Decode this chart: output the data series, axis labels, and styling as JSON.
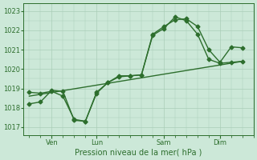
{
  "title": "",
  "xlabel": "Pression niveau de la mer( hPa )",
  "ylabel": "",
  "bg_color": "#cce8d8",
  "line_color": "#2d6e2d",
  "grid_color": "#aacdb8",
  "ylim": [
    1016.6,
    1023.4
  ],
  "yticks": [
    1017,
    1018,
    1019,
    1020,
    1021,
    1022,
    1023
  ],
  "xtick_labels": [
    "Ven",
    "Lun",
    "Sam",
    "Dim"
  ],
  "xtick_positions": [
    2,
    6,
    12,
    17
  ],
  "xlim": [
    -0.5,
    20
  ],
  "line1_x": [
    0,
    1,
    2,
    3,
    4,
    5,
    6,
    7,
    8,
    9,
    10,
    11,
    12,
    13,
    14,
    15,
    16,
    17,
    18,
    19
  ],
  "line1_y": [
    1018.8,
    1018.75,
    1018.85,
    1018.6,
    1017.4,
    1017.3,
    1018.75,
    1019.3,
    1019.65,
    1019.65,
    1019.7,
    1021.8,
    1022.2,
    1022.55,
    1022.6,
    1022.2,
    1021.0,
    1020.35,
    1021.15,
    1021.1
  ],
  "line2_x": [
    0,
    1,
    2,
    3,
    4,
    5,
    6,
    7,
    8,
    9,
    10,
    11,
    12,
    13,
    14,
    15,
    16,
    17,
    18,
    19
  ],
  "line2_y": [
    1018.2,
    1018.3,
    1018.9,
    1018.85,
    1017.35,
    1017.3,
    1018.8,
    1019.3,
    1019.6,
    1019.65,
    1019.7,
    1021.75,
    1022.1,
    1022.7,
    1022.5,
    1021.8,
    1020.5,
    1020.3,
    1020.35,
    1020.4
  ],
  "line3_x": [
    0,
    19
  ],
  "line3_y": [
    1018.6,
    1020.4
  ],
  "line_width": 1.0,
  "marker_size": 2.5
}
